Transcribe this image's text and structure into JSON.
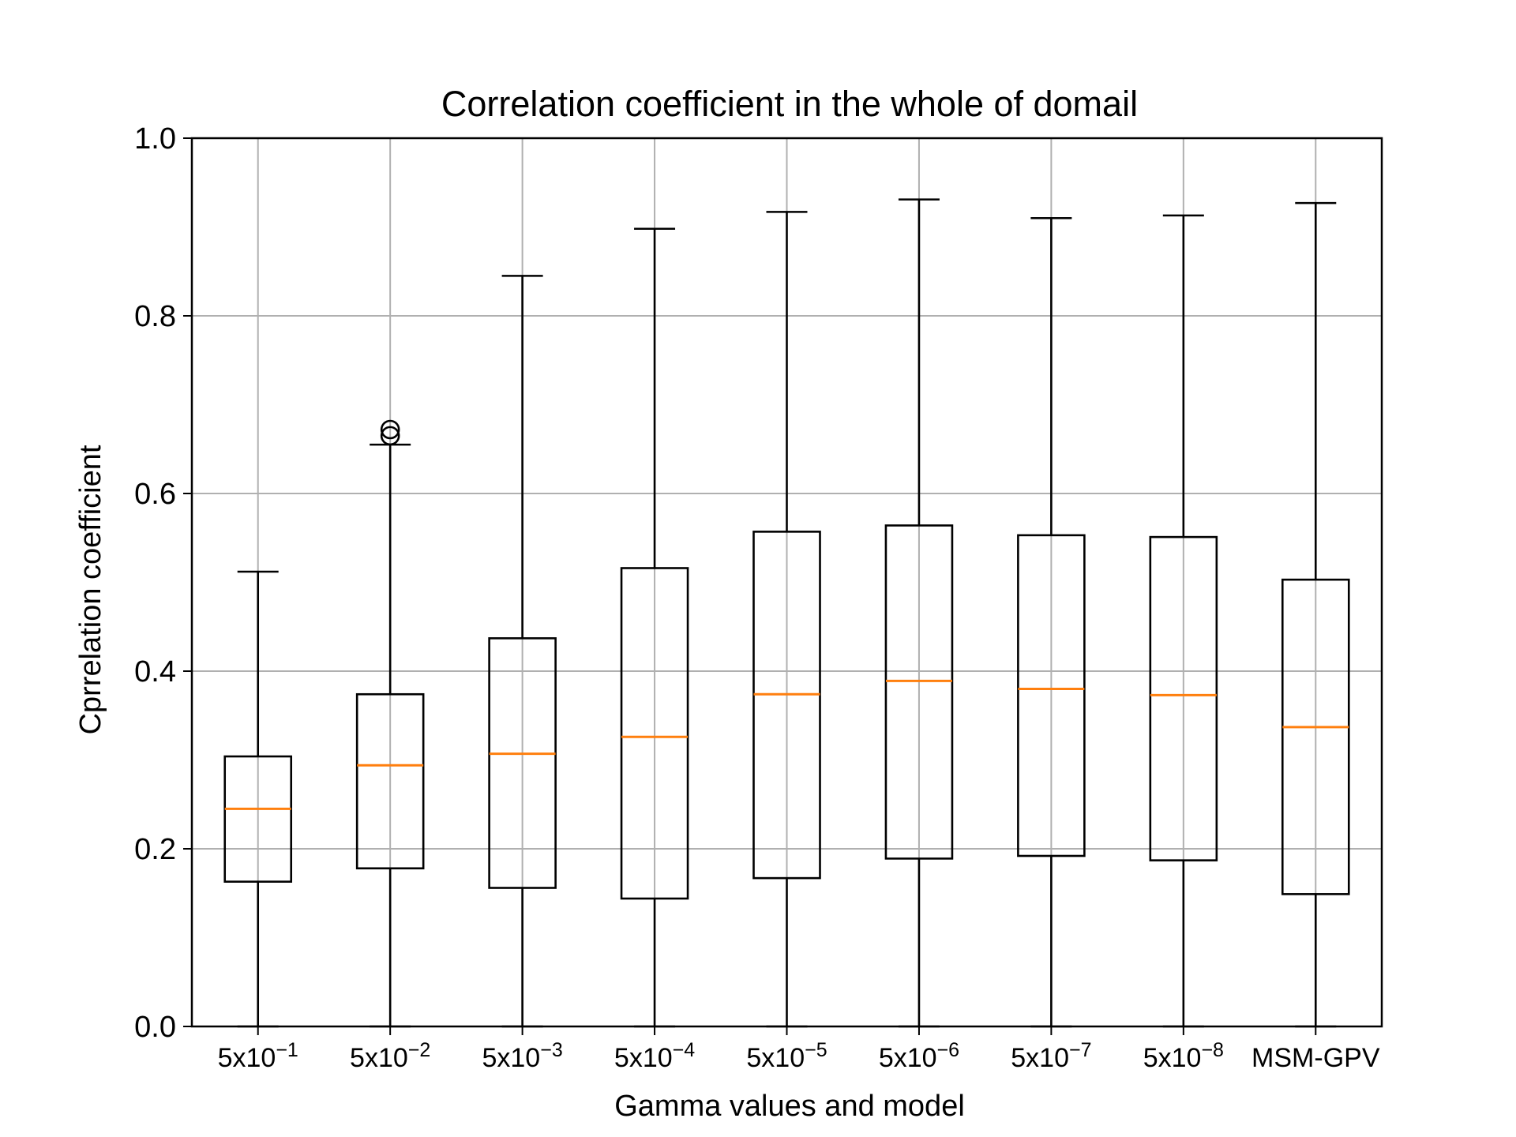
{
  "chart_data": {
    "type": "box",
    "title": "Correlation coefficient in the whole of domail",
    "xlabel": "Gamma values and model",
    "ylabel": "Cprrelation coefficient",
    "ylim": [
      0.0,
      1.0
    ],
    "yticks": [
      "0.0",
      "0.2",
      "0.4",
      "0.6",
      "0.8",
      "1.0"
    ],
    "grid": true,
    "categories": [
      {
        "base": "5x10",
        "exp": "−1"
      },
      {
        "base": "5x10",
        "exp": "−2"
      },
      {
        "base": "5x10",
        "exp": "−3"
      },
      {
        "base": "5x10",
        "exp": "−4"
      },
      {
        "base": "5x10",
        "exp": "−5"
      },
      {
        "base": "5x10",
        "exp": "−6"
      },
      {
        "base": "5x10",
        "exp": "−7"
      },
      {
        "base": "5x10",
        "exp": "−8"
      },
      {
        "base": "MSM-GPV",
        "exp": ""
      }
    ],
    "boxes": [
      {
        "whisker_low": 0.0,
        "q1": 0.163,
        "median": 0.245,
        "q3": 0.304,
        "whisker_high": 0.512,
        "outliers": []
      },
      {
        "whisker_low": 0.0,
        "q1": 0.178,
        "median": 0.294,
        "q3": 0.374,
        "whisker_high": 0.655,
        "outliers": [
          0.665,
          0.672
        ]
      },
      {
        "whisker_low": 0.0,
        "q1": 0.156,
        "median": 0.307,
        "q3": 0.437,
        "whisker_high": 0.845,
        "outliers": []
      },
      {
        "whisker_low": 0.0,
        "q1": 0.144,
        "median": 0.326,
        "q3": 0.516,
        "whisker_high": 0.898,
        "outliers": []
      },
      {
        "whisker_low": 0.0,
        "q1": 0.167,
        "median": 0.374,
        "q3": 0.557,
        "whisker_high": 0.917,
        "outliers": []
      },
      {
        "whisker_low": 0.0,
        "q1": 0.189,
        "median": 0.389,
        "q3": 0.564,
        "whisker_high": 0.931,
        "outliers": []
      },
      {
        "whisker_low": 0.0,
        "q1": 0.192,
        "median": 0.38,
        "q3": 0.553,
        "whisker_high": 0.91,
        "outliers": []
      },
      {
        "whisker_low": 0.0,
        "q1": 0.187,
        "median": 0.373,
        "q3": 0.551,
        "whisker_high": 0.913,
        "outliers": []
      },
      {
        "whisker_low": 0.0,
        "q1": 0.149,
        "median": 0.337,
        "q3": 0.503,
        "whisker_high": 0.927,
        "outliers": []
      }
    ],
    "colors": {
      "box": "#000000",
      "median": "#ff7f0e",
      "grid": "#b0b0b0"
    }
  }
}
